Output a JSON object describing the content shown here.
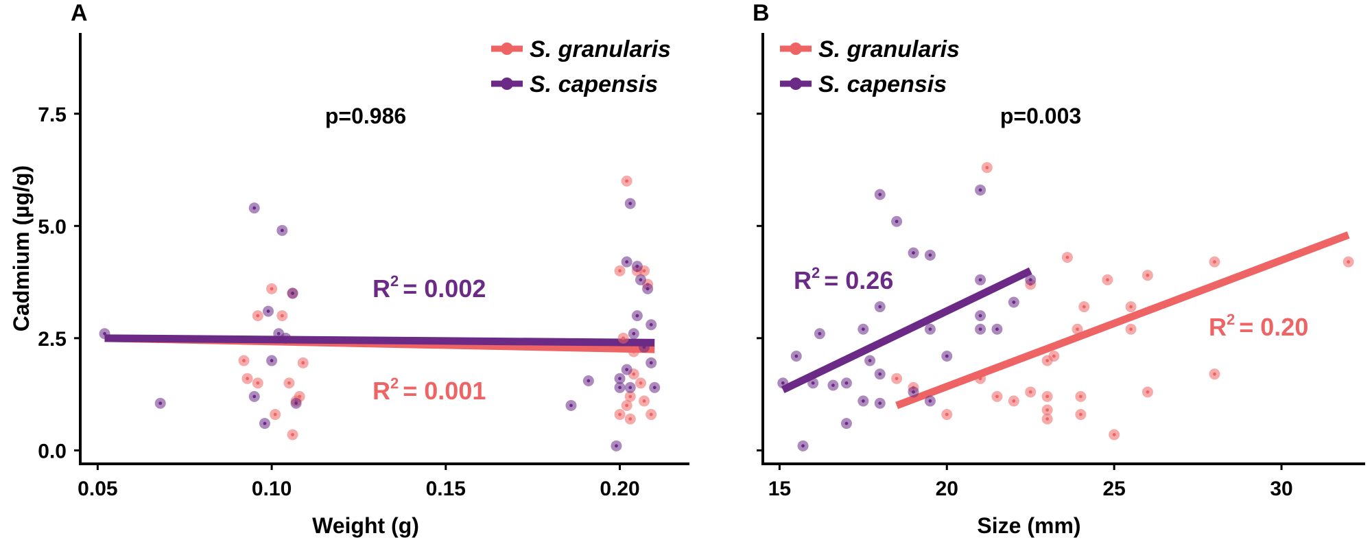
{
  "figure": {
    "colors": {
      "granularis": "#EE6464",
      "capensis": "#6A2A86"
    },
    "y_axis_title": "Cadmium (µg/g)"
  },
  "chart_data": [
    {
      "type": "scatter",
      "panel": "A",
      "xlabel": "Weight (g)",
      "ylabel": "Cadmium (µg/g)",
      "xlim": [
        0.045,
        0.22
      ],
      "ylim": [
        -0.3,
        9.3
      ],
      "xticks": [
        0.05,
        0.1,
        0.15,
        0.2
      ],
      "xtick_labels": [
        "0.05",
        "0.10",
        "0.15",
        "0.20"
      ],
      "yticks": [
        0.0,
        2.5,
        5.0,
        7.5
      ],
      "ytick_labels": [
        "0.0",
        "2.5",
        "5.0",
        "7.5"
      ],
      "legend": [
        "S. granularis",
        "S. capensis"
      ],
      "legend_position": "top-right",
      "p_value": "p=0.986",
      "series": [
        {
          "name": "S. granularis",
          "color": "#EE6464",
          "r2_label": "= 0.001",
          "fit": [
            [
              0.052,
              2.5
            ],
            [
              0.21,
              2.25
            ]
          ],
          "points": [
            [
              0.092,
              2.0
            ],
            [
              0.093,
              1.6
            ],
            [
              0.096,
              3.0
            ],
            [
              0.096,
              1.5
            ],
            [
              0.1,
              3.6
            ],
            [
              0.101,
              0.8
            ],
            [
              0.103,
              3.0
            ],
            [
              0.105,
              1.5
            ],
            [
              0.106,
              0.35
            ],
            [
              0.106,
              3.5
            ],
            [
              0.108,
              1.2
            ],
            [
              0.109,
              1.95
            ],
            [
              0.107,
              1.1
            ],
            [
              0.2,
              4.0
            ],
            [
              0.2,
              0.8
            ],
            [
              0.201,
              2.5
            ],
            [
              0.202,
              1.0
            ],
            [
              0.202,
              6.0
            ],
            [
              0.203,
              0.7
            ],
            [
              0.203,
              1.2
            ],
            [
              0.204,
              1.7
            ],
            [
              0.204,
              2.2
            ],
            [
              0.205,
              4.0
            ],
            [
              0.206,
              1.5
            ],
            [
              0.207,
              4.0
            ],
            [
              0.207,
              1.1
            ],
            [
              0.208,
              3.7
            ],
            [
              0.209,
              0.8
            ]
          ]
        },
        {
          "name": "S. capensis",
          "color": "#6A2A86",
          "r2_label": "= 0.002",
          "fit": [
            [
              0.052,
              2.5
            ],
            [
              0.21,
              2.4
            ]
          ],
          "points": [
            [
              0.052,
              2.6
            ],
            [
              0.068,
              1.05
            ],
            [
              0.095,
              5.4
            ],
            [
              0.095,
              1.2
            ],
            [
              0.098,
              0.6
            ],
            [
              0.099,
              3.1
            ],
            [
              0.1,
              2.0
            ],
            [
              0.102,
              2.6
            ],
            [
              0.103,
              4.9
            ],
            [
              0.104,
              2.5
            ],
            [
              0.106,
              3.5
            ],
            [
              0.107,
              1.05
            ],
            [
              0.186,
              1.0
            ],
            [
              0.191,
              1.55
            ],
            [
              0.199,
              0.1
            ],
            [
              0.2,
              1.6
            ],
            [
              0.2,
              1.4
            ],
            [
              0.202,
              1.8
            ],
            [
              0.202,
              4.2
            ],
            [
              0.203,
              5.5
            ],
            [
              0.204,
              2.6
            ],
            [
              0.205,
              3.0
            ],
            [
              0.205,
              4.1
            ],
            [
              0.206,
              3.8
            ],
            [
              0.207,
              2.3
            ],
            [
              0.208,
              3.6
            ],
            [
              0.209,
              1.95
            ],
            [
              0.209,
              2.8
            ],
            [
              0.21,
              1.4
            ],
            [
              0.203,
              1.4
            ]
          ]
        }
      ]
    },
    {
      "type": "scatter",
      "panel": "B",
      "xlabel": "Size (mm)",
      "ylabel": "Cadmium (µg/g)",
      "xlim": [
        14.5,
        32.5
      ],
      "ylim": [
        -0.3,
        9.3
      ],
      "xticks": [
        15,
        20,
        25,
        30
      ],
      "xtick_labels": [
        "15",
        "20",
        "25",
        "30"
      ],
      "yticks": [
        0.0,
        2.5,
        5.0,
        7.5
      ],
      "legend": [
        "S. granularis",
        "S. capensis"
      ],
      "legend_position": "top-left",
      "p_value": "p=0.003",
      "series": [
        {
          "name": "S. granularis",
          "color": "#EE6464",
          "r2_label": "= 0.20",
          "fit": [
            [
              18.5,
              1.0
            ],
            [
              32,
              4.8
            ]
          ],
          "points": [
            [
              18.5,
              1.6
            ],
            [
              20,
              0.8
            ],
            [
              21.2,
              6.3
            ],
            [
              21,
              1.6
            ],
            [
              21.5,
              1.2
            ],
            [
              22,
              1.1
            ],
            [
              22.5,
              3.7
            ],
            [
              22.5,
              1.3
            ],
            [
              23,
              0.9
            ],
            [
              23,
              0.7
            ],
            [
              23,
              2.0
            ],
            [
              23,
              1.2
            ],
            [
              23.2,
              2.1
            ],
            [
              23.6,
              4.3
            ],
            [
              24,
              0.8
            ],
            [
              24,
              1.2
            ],
            [
              24.1,
              3.2
            ],
            [
              24.8,
              3.8
            ],
            [
              25,
              0.35
            ],
            [
              25.5,
              3.2
            ],
            [
              25.5,
              2.7
            ],
            [
              26,
              3.9
            ],
            [
              26,
              1.3
            ],
            [
              28,
              4.2
            ],
            [
              28,
              1.7
            ],
            [
              32,
              4.2
            ],
            [
              19,
              1.4
            ],
            [
              23.9,
              2.7
            ]
          ]
        },
        {
          "name": "S. capensis",
          "color": "#6A2A86",
          "r2_label": "= 0.26",
          "fit": [
            [
              15.1,
              1.35
            ],
            [
              22.5,
              4.0
            ]
          ],
          "points": [
            [
              15.1,
              1.5
            ],
            [
              15.5,
              2.1
            ],
            [
              15.7,
              0.1
            ],
            [
              16,
              1.5
            ],
            [
              16.2,
              2.6
            ],
            [
              16.6,
              1.45
            ],
            [
              17,
              0.6
            ],
            [
              17,
              1.5
            ],
            [
              17.5,
              1.1
            ],
            [
              17.5,
              2.7
            ],
            [
              17.7,
              2.0
            ],
            [
              18,
              5.7
            ],
            [
              18,
              3.2
            ],
            [
              18,
              1.05
            ],
            [
              18,
              1.7
            ],
            [
              18.5,
              5.1
            ],
            [
              19,
              4.4
            ],
            [
              19,
              1.3
            ],
            [
              19.5,
              2.7
            ],
            [
              19.5,
              4.35
            ],
            [
              19.5,
              1.1
            ],
            [
              20,
              2.1
            ],
            [
              21,
              5.8
            ],
            [
              21,
              3.8
            ],
            [
              21,
              2.7
            ],
            [
              21,
              3.0
            ],
            [
              21.5,
              2.7
            ],
            [
              22,
              3.3
            ],
            [
              22.5,
              3.8
            ]
          ]
        }
      ]
    }
  ]
}
